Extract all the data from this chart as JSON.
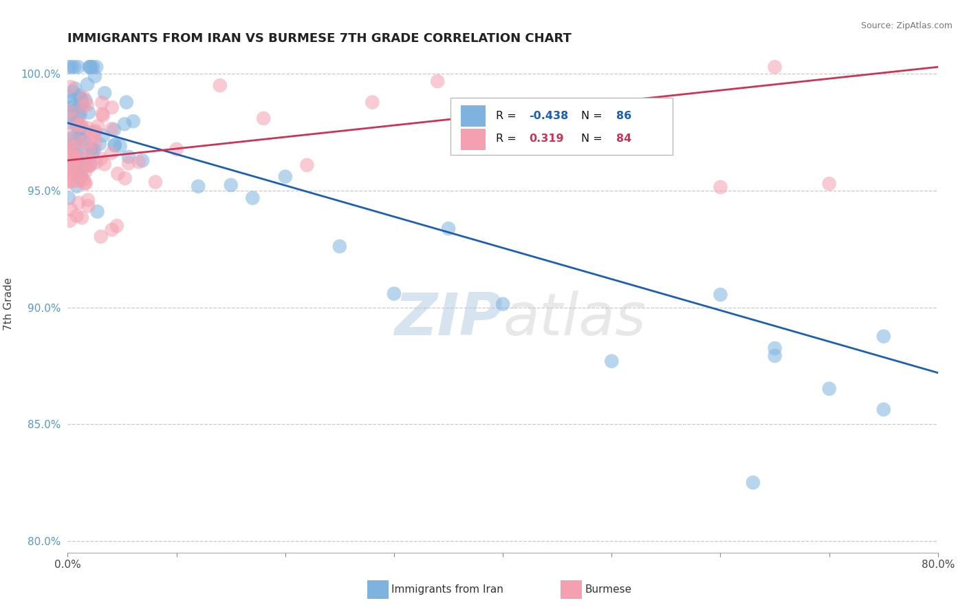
{
  "title": "IMMIGRANTS FROM IRAN VS BURMESE 7TH GRADE CORRELATION CHART",
  "source_text": "Source: ZipAtlas.com",
  "ylabel": "7th Grade",
  "xlim": [
    0.0,
    0.8
  ],
  "ylim": [
    0.795,
    1.008
  ],
  "xtick_vals": [
    0.0,
    0.1,
    0.2,
    0.3,
    0.4,
    0.5,
    0.6,
    0.7,
    0.8
  ],
  "xticklabels": [
    "0.0%",
    "",
    "",
    "",
    "",
    "",
    "",
    "",
    "80.0%"
  ],
  "ytick_vals": [
    0.8,
    0.85,
    0.9,
    0.95,
    1.0
  ],
  "yticklabels": [
    "80.0%",
    "85.0%",
    "90.0%",
    "95.0%",
    "100.0%"
  ],
  "blue_R": -0.438,
  "blue_N": 86,
  "pink_R": 0.319,
  "pink_N": 84,
  "blue_color": "#7EB3E0",
  "pink_color": "#F4A0B0",
  "blue_line_color": "#1A5FB4",
  "pink_line_color": "#CC3355",
  "watermark_zip": "ZIP",
  "watermark_atlas": "atlas",
  "legend_label_blue": "Immigrants from Iran",
  "legend_label_pink": "Burmese",
  "blue_line_x0": 0.0,
  "blue_line_y0": 0.979,
  "blue_line_x1": 0.8,
  "blue_line_y1": 0.872,
  "pink_line_x0": 0.0,
  "pink_line_y0": 0.963,
  "pink_line_x1": 0.8,
  "pink_line_y1": 1.003
}
